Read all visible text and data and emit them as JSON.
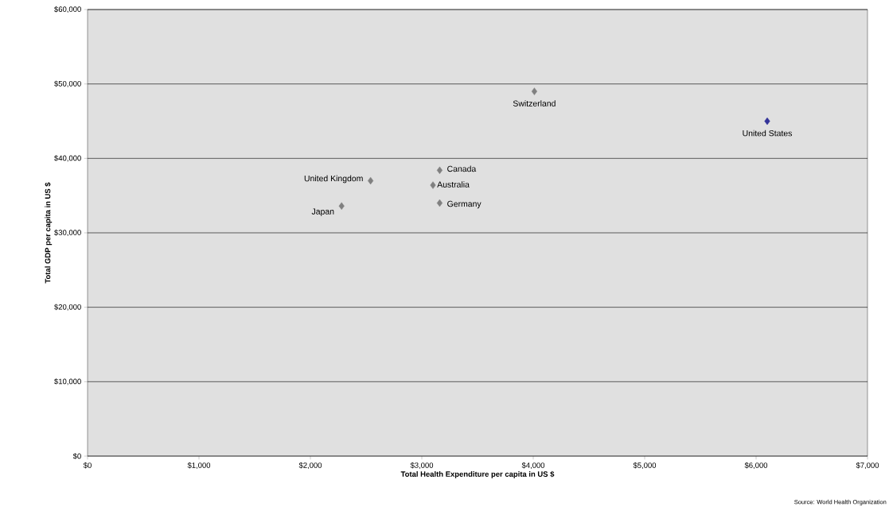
{
  "chart_data": {
    "type": "scatter",
    "xlabel": "Total Health Expenditure per capita in US $",
    "ylabel": "Total GDP per capita in US $",
    "x": [
      4010,
      6100,
      2540,
      3160,
      3100,
      3160,
      2280
    ],
    "values": [
      49000,
      45000,
      37000,
      38400,
      36400,
      34000,
      33600
    ],
    "colors": [
      "#808080",
      "#333399",
      "#808080",
      "#808080",
      "#808080",
      "#808080",
      "#808080"
    ],
    "marker": "diamond",
    "grid": "y",
    "xlim": [
      0,
      7000
    ],
    "ylim": [
      0,
      60000
    ],
    "xticks": [
      {
        "value": 0,
        "label": "$0"
      },
      {
        "value": 1000,
        "label": "$1,000"
      },
      {
        "value": 2000,
        "label": "$2,000"
      },
      {
        "value": 3000,
        "label": "$3,000"
      },
      {
        "value": 4000,
        "label": "$4,000"
      },
      {
        "value": 5000,
        "label": "$5,000"
      },
      {
        "value": 6000,
        "label": "$6,000"
      },
      {
        "value": 7000,
        "label": "$7,000"
      }
    ],
    "yticks": [
      {
        "value": 0,
        "label": "$0"
      },
      {
        "value": 10000,
        "label": "$10,000"
      },
      {
        "value": 20000,
        "label": "$20,000"
      },
      {
        "value": 30000,
        "label": "$30,000"
      },
      {
        "value": 40000,
        "label": "$40,000"
      },
      {
        "value": 50000,
        "label": "$50,000"
      },
      {
        "value": 60000,
        "label": "$60,000"
      }
    ],
    "annotations": [
      {
        "text": "Switzerland",
        "x": 4010,
        "y": 49000
      },
      {
        "text": "United States",
        "x": 6100,
        "y": 45000
      },
      {
        "text": "United Kingdom",
        "x": 2540,
        "y": 37000
      },
      {
        "text": "Canada",
        "x": 3160,
        "y": 38400
      },
      {
        "text": "Australia",
        "x": 3100,
        "y": 36400
      },
      {
        "text": "Germany",
        "x": 3160,
        "y": 34000
      },
      {
        "text": "Japan",
        "x": 2280,
        "y": 33600
      },
      "Source: World Health Organization"
    ]
  }
}
